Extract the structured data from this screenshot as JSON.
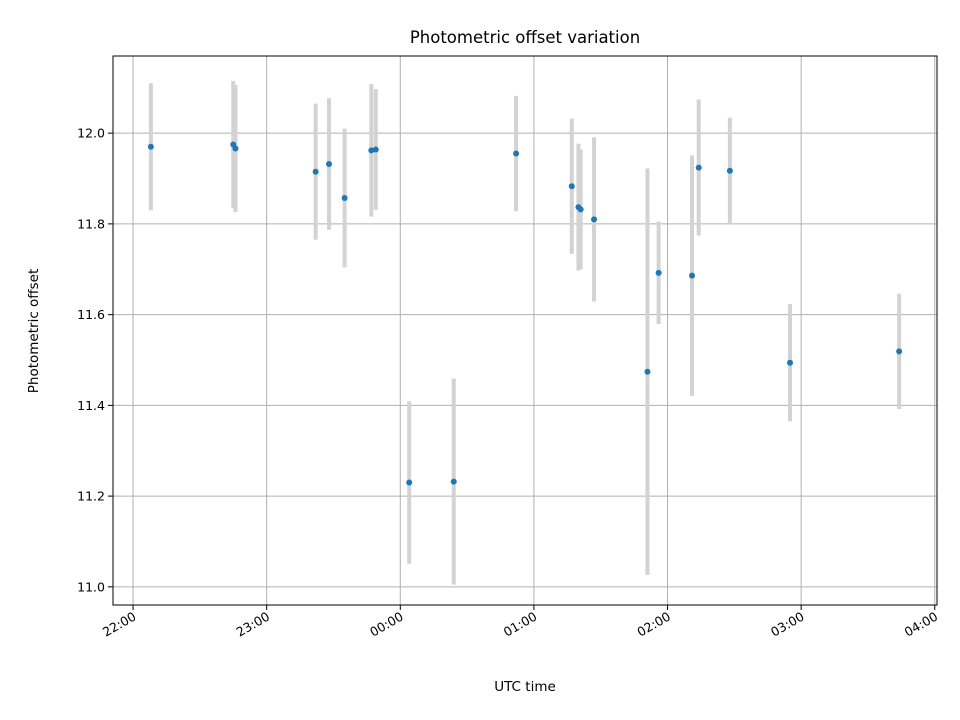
{
  "chart_data": {
    "type": "scatter",
    "title": "Photometric offset variation",
    "xlabel": "UTC time",
    "ylabel": "Photometric offset",
    "xlim": [
      "21:51",
      "04:01"
    ],
    "ylim": [
      10.96,
      12.17
    ],
    "x_ticks": [
      "22:00",
      "23:00",
      "00:00",
      "01:00",
      "02:00",
      "03:00",
      "04:00"
    ],
    "y_ticks": [
      "11.0",
      "11.2",
      "11.4",
      "11.6",
      "11.8",
      "12.0"
    ],
    "grid": true,
    "point_color": "#1f77b4",
    "errorbar_color": "#d3d3d3",
    "points": [
      {
        "x": "22:08",
        "y": 11.97,
        "err": 0.14
      },
      {
        "x": "22:45",
        "y": 11.975,
        "err": 0.14
      },
      {
        "x": "22:46",
        "y": 11.966,
        "err": 0.14
      },
      {
        "x": "23:22",
        "y": 11.915,
        "err": 0.15
      },
      {
        "x": "23:28",
        "y": 11.932,
        "err": 0.145
      },
      {
        "x": "23:35",
        "y": 11.857,
        "err": 0.153
      },
      {
        "x": "23:47",
        "y": 11.962,
        "err": 0.146
      },
      {
        "x": "23:49",
        "y": 11.964,
        "err": 0.133
      },
      {
        "x": "00:04",
        "y": 11.23,
        "err": 0.179
      },
      {
        "x": "00:24",
        "y": 11.232,
        "err": 0.227
      },
      {
        "x": "00:52",
        "y": 11.955,
        "err": 0.127
      },
      {
        "x": "01:17",
        "y": 11.883,
        "err": 0.149
      },
      {
        "x": "01:20",
        "y": 11.837,
        "err": 0.14
      },
      {
        "x": "01:21",
        "y": 11.832,
        "err": 0.132
      },
      {
        "x": "01:27",
        "y": 11.81,
        "err": 0.181
      },
      {
        "x": "01:51",
        "y": 11.474,
        "err": 0.448
      },
      {
        "x": "01:56",
        "y": 11.692,
        "err": 0.113
      },
      {
        "x": "02:11",
        "y": 11.686,
        "err": 0.265
      },
      {
        "x": "02:14",
        "y": 11.924,
        "err": 0.15
      },
      {
        "x": "02:28",
        "y": 11.917,
        "err": 0.117
      },
      {
        "x": "02:55",
        "y": 11.494,
        "err": 0.129
      },
      {
        "x": "03:44",
        "y": 11.519,
        "err": 0.127
      }
    ]
  }
}
